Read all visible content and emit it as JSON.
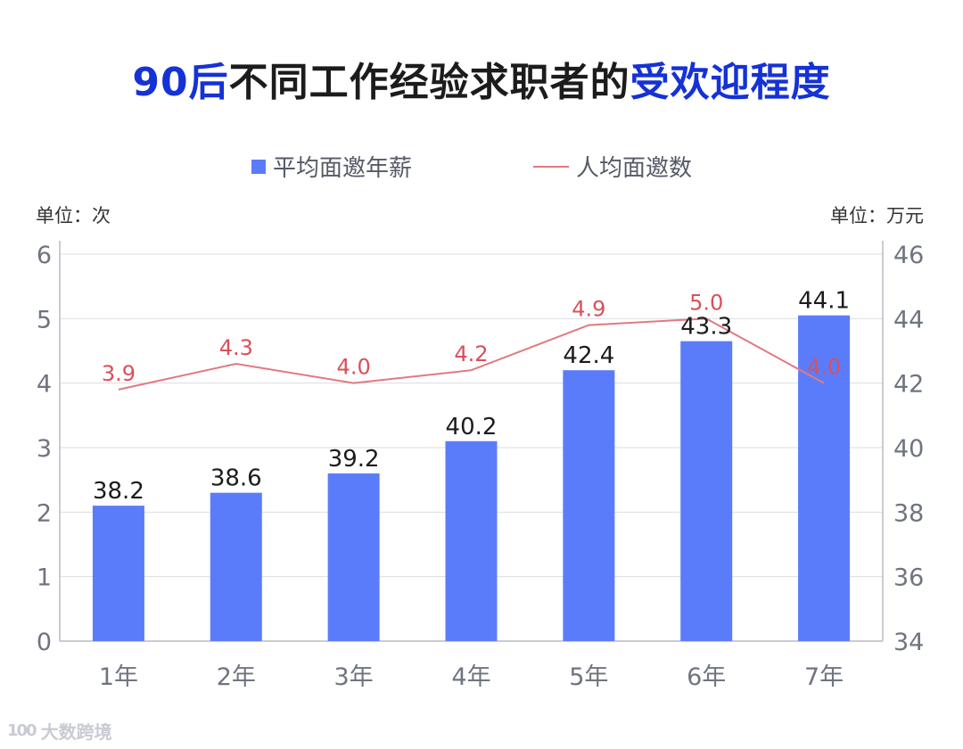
{
  "title": {
    "prefix": "90后",
    "middle": "不同工作经验求职者的",
    "suffix": "受欢迎程度"
  },
  "watermark": {
    "logo": "100",
    "text": "大数跨境"
  },
  "colors": {
    "bar": "#5b7cfa",
    "line": "#e07a80",
    "title_accent": "#1532d6"
  },
  "chart_data": {
    "type": "bar",
    "categories": [
      "1年",
      "2年",
      "3年",
      "4年",
      "5年",
      "6年",
      "7年"
    ],
    "series": [
      {
        "name": "平均面邀年薪",
        "type": "bar",
        "axis": "right",
        "values": [
          38.2,
          38.6,
          39.2,
          40.2,
          42.4,
          43.3,
          44.1
        ]
      },
      {
        "name": "人均面邀数",
        "type": "line",
        "axis": "left",
        "values": [
          3.9,
          4.3,
          4.0,
          4.2,
          4.9,
          5.0,
          4.0
        ]
      }
    ],
    "left_axis": {
      "unit": "单位：次",
      "min": 0,
      "max": 6,
      "ticks": [
        "0",
        "1",
        "2",
        "3",
        "4",
        "5",
        "6"
      ]
    },
    "right_axis": {
      "unit": "单位：万元",
      "min": 34,
      "max": 46,
      "ticks": [
        "34",
        "36",
        "38",
        "40",
        "42",
        "44",
        "46"
      ]
    },
    "legend_position": "top-center",
    "grid": true
  }
}
